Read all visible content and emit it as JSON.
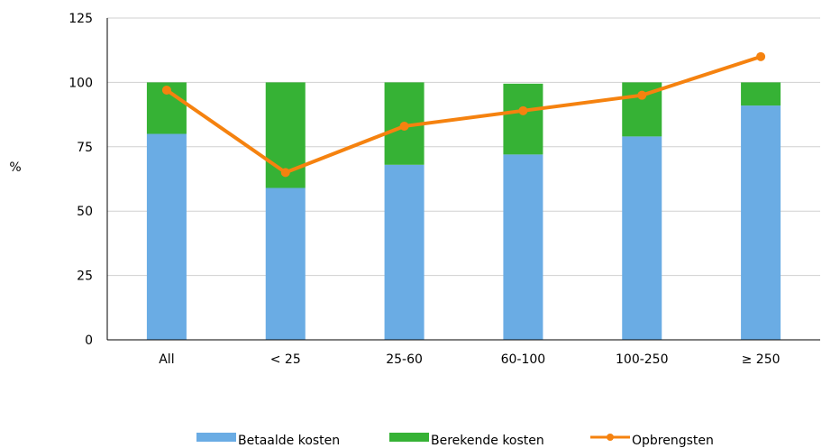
{
  "chart_data": {
    "type": "bar",
    "stacked": true,
    "categories": [
      "All",
      "< 25",
      "25-60",
      "60-100",
      "100-250",
      "≥ 250"
    ],
    "series": [
      {
        "name": "Betaalde kosten",
        "kind": "bar",
        "color": "#6aace4",
        "values": [
          80,
          59,
          68,
          72,
          79,
          91
        ]
      },
      {
        "name": "Berekende kosten",
        "kind": "bar",
        "color": "#36b235",
        "values": [
          20,
          41,
          32,
          27.5,
          21,
          9
        ]
      },
      {
        "name": "Opbrengsten",
        "kind": "line",
        "color": "#f5820f",
        "values": [
          97,
          65,
          83,
          89,
          95,
          110
        ]
      }
    ],
    "ylabel": "%",
    "ylim": [
      0,
      125
    ],
    "yticks": [
      0,
      25,
      50,
      75,
      100,
      125
    ],
    "grid": true,
    "legend_position": "bottom"
  }
}
